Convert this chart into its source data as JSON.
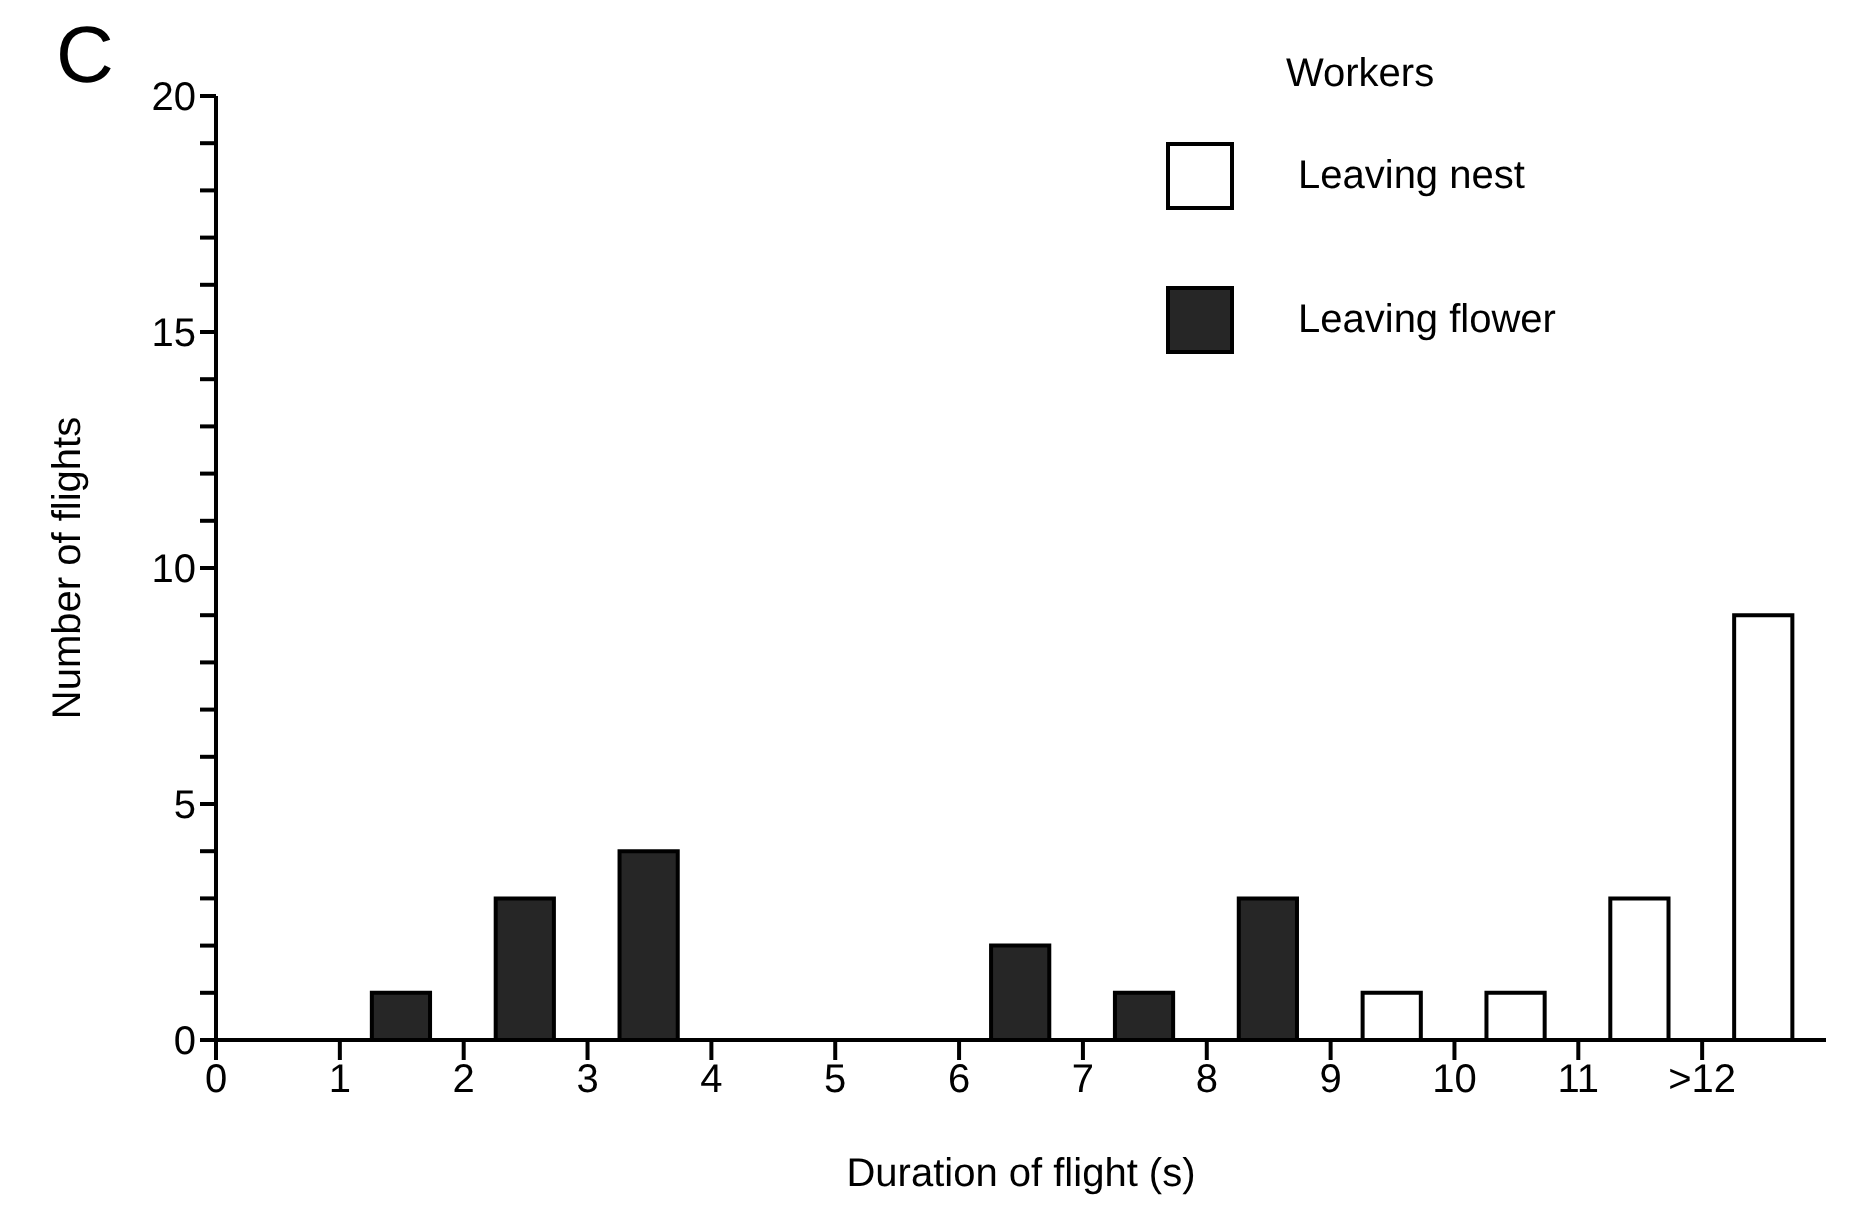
{
  "chart_data": {
    "type": "bar",
    "xlabel": "Duration of flight (s)",
    "ylabel": "Number of flights",
    "legend_title": "Workers",
    "annotations": [
      "C"
    ],
    "xlim": [
      0,
      13
    ],
    "xticks": [
      0,
      1,
      2,
      3,
      4,
      5,
      6,
      7,
      8,
      9,
      10,
      11,
      {
        "value": 12,
        "label": ">12"
      }
    ],
    "ylim": [
      0,
      20
    ],
    "yticks": [
      0,
      {
        "value": 1,
        "label": null
      },
      {
        "value": 2,
        "label": null
      },
      {
        "value": 3,
        "label": null
      },
      {
        "value": 4,
        "label": null
      },
      5,
      {
        "value": 6,
        "label": null
      },
      {
        "value": 7,
        "label": null
      },
      {
        "value": 8,
        "label": null
      },
      {
        "value": 9,
        "label": null
      },
      10,
      {
        "value": 11,
        "label": null
      },
      {
        "value": 12,
        "label": null
      },
      {
        "value": 13,
        "label": null
      },
      {
        "value": 14,
        "label": null
      },
      15,
      {
        "value": 16,
        "label": null
      },
      {
        "value": 17,
        "label": null
      },
      {
        "value": 18,
        "label": null
      },
      {
        "value": 19,
        "label": null
      },
      20
    ],
    "legend": "top right",
    "series": [
      {
        "name": "Leaving nest",
        "color": "#ffffff",
        "x": [
          9.5,
          10.5,
          11.5,
          12.5
        ],
        "values": [
          1,
          1,
          3,
          9
        ]
      },
      {
        "name": "Leaving flower",
        "color": "#262626",
        "x": [
          1.5,
          2.5,
          3.5,
          6.5,
          7.5,
          8.5
        ],
        "values": [
          1,
          3,
          4,
          2,
          1,
          3
        ]
      }
    ]
  }
}
